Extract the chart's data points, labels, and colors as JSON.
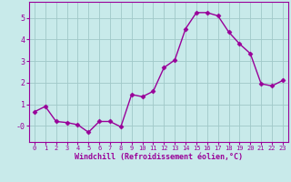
{
  "x": [
    0,
    1,
    2,
    3,
    4,
    5,
    6,
    7,
    8,
    9,
    10,
    11,
    12,
    13,
    14,
    15,
    16,
    17,
    18,
    19,
    20,
    21,
    22,
    23
  ],
  "y": [
    0.65,
    0.9,
    0.2,
    0.15,
    0.05,
    -0.3,
    0.2,
    0.2,
    -0.05,
    1.45,
    1.35,
    1.6,
    2.7,
    3.05,
    4.5,
    5.25,
    5.25,
    5.1,
    4.35,
    3.8,
    3.35,
    1.95,
    1.85,
    2.1
  ],
  "line_color": "#990099",
  "marker": "D",
  "markersize": 2.5,
  "linewidth": 1.0,
  "bg_color": "#c8eaea",
  "grid_color": "#a0c8c8",
  "xlabel": "Windchill (Refroidissement éolien,°C)",
  "xlabel_color": "#990099",
  "tick_color": "#990099",
  "axis_color": "#990099",
  "ylim": [
    -0.75,
    5.75
  ],
  "xlim": [
    -0.5,
    23.5
  ],
  "yticks": [
    0,
    1,
    2,
    3,
    4,
    5
  ],
  "ytick_labels": [
    "-0",
    "1",
    "2",
    "3",
    "4",
    "5"
  ],
  "xticks": [
    0,
    1,
    2,
    3,
    4,
    5,
    6,
    7,
    8,
    9,
    10,
    11,
    12,
    13,
    14,
    15,
    16,
    17,
    18,
    19,
    20,
    21,
    22,
    23
  ]
}
